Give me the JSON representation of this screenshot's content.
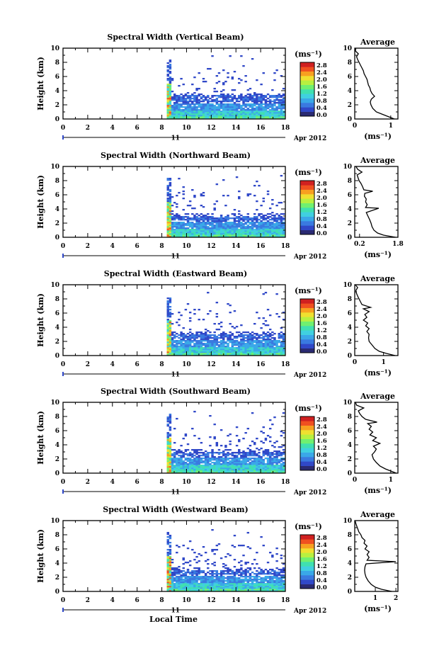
{
  "chart_data": {
    "type": "heatmap",
    "colormap": [
      "#2a2a72",
      "#3048c8",
      "#3a7ae0",
      "#3aa8e8",
      "#40d0e0",
      "#40e0b0",
      "#70f070",
      "#b8f040",
      "#f0e030",
      "#f8a020",
      "#f05020",
      "#d02020"
    ],
    "shared": {
      "ylabel": "Height (km)",
      "ylim": [
        0,
        10
      ],
      "yticks": [
        "0",
        "2",
        "4",
        "6",
        "8",
        "10"
      ],
      "xlim": [
        0,
        18
      ],
      "xticks": [
        "0",
        "2",
        "4",
        "6",
        "8",
        "10",
        "12",
        "14",
        "16",
        "18"
      ],
      "date_day": "11",
      "date_month": "Apr 2012",
      "xlabel": "Local Time",
      "colorbar_unit": "(ms⁻¹)",
      "colorbar_ticks": [
        "0.0",
        "0.4",
        "0.8",
        "1.2",
        "1.6",
        "2.0",
        "2.4",
        "2.8"
      ],
      "avg_title": "Average",
      "avg_xlabel": "(ms⁻¹)"
    },
    "panels": [
      {
        "title": "Spectral Width (Vertical Beam)",
        "data_start": 8.4,
        "data_end": 17.8,
        "upper_layer": 3.3,
        "sparse_top": 8.4,
        "avg_xlim": [
          0,
          1.2
        ],
        "avg_xticks": [
          "0",
          "1"
        ],
        "avg_xtick_values": [
          0,
          1
        ],
        "avg_profile": [
          [
            1.1,
            0
          ],
          [
            0.95,
            0.3
          ],
          [
            0.8,
            0.6
          ],
          [
            0.6,
            1
          ],
          [
            0.5,
            1.5
          ],
          [
            0.45,
            2
          ],
          [
            0.43,
            2.4
          ],
          [
            0.46,
            2.8
          ],
          [
            0.55,
            3.2
          ],
          [
            0.48,
            3.6
          ],
          [
            0.44,
            4
          ],
          [
            0.42,
            4.4
          ],
          [
            0.38,
            4.8
          ],
          [
            0.36,
            5.2
          ],
          [
            0.34,
            5.6
          ],
          [
            0.3,
            6
          ],
          [
            0.26,
            6.4
          ],
          [
            0.24,
            6.8
          ],
          [
            0.2,
            7.2
          ],
          [
            0.16,
            7.6
          ],
          [
            0.12,
            8
          ],
          [
            0.08,
            8.4
          ],
          [
            0.05,
            8.8
          ],
          [
            0.1,
            9.2
          ],
          [
            0.02,
            9.6
          ],
          [
            0.03,
            10
          ]
        ]
      },
      {
        "title": "Spectral Width (Northward Beam)",
        "data_start": 8.4,
        "data_end": 17.8,
        "upper_layer": 3.0,
        "sparse_top": 8.4,
        "avg_xlim": [
          0,
          1.8
        ],
        "avg_xticks": [
          "0.2",
          "1.8"
        ],
        "avg_xtick_values": [
          0.2,
          1.8
        ],
        "avg_profile": [
          [
            1.7,
            0
          ],
          [
            1.2,
            0.3
          ],
          [
            0.95,
            0.6
          ],
          [
            0.8,
            1
          ],
          [
            0.72,
            1.5
          ],
          [
            0.68,
            2
          ],
          [
            0.62,
            2.5
          ],
          [
            0.55,
            3
          ],
          [
            0.48,
            3.5
          ],
          [
            1.0,
            4.1
          ],
          [
            0.45,
            4.2
          ],
          [
            0.52,
            4.6
          ],
          [
            0.45,
            5
          ],
          [
            0.48,
            5.4
          ],
          [
            0.4,
            5.8
          ],
          [
            0.42,
            6.2
          ],
          [
            0.75,
            6.5
          ],
          [
            0.38,
            6.7
          ],
          [
            0.32,
            7.2
          ],
          [
            0.26,
            7.6
          ],
          [
            0.18,
            8
          ],
          [
            0.14,
            8.4
          ],
          [
            0.1,
            8.8
          ],
          [
            0.3,
            9.2
          ],
          [
            0.12,
            9.6
          ],
          [
            0.05,
            10
          ]
        ]
      },
      {
        "title": "Spectral Width (Eastward Beam)",
        "data_start": 8.4,
        "data_end": 17.8,
        "upper_layer": 3.0,
        "sparse_top": 8.2,
        "avg_xlim": [
          0,
          1.5
        ],
        "avg_xticks": [
          "0",
          "1"
        ],
        "avg_xtick_values": [
          0,
          1
        ],
        "avg_profile": [
          [
            1.4,
            0
          ],
          [
            1.1,
            0.3
          ],
          [
            0.85,
            0.6
          ],
          [
            0.7,
            1
          ],
          [
            0.6,
            1.5
          ],
          [
            0.5,
            2
          ],
          [
            0.48,
            2.5
          ],
          [
            0.5,
            3
          ],
          [
            0.42,
            3.4
          ],
          [
            0.5,
            3.8
          ],
          [
            0.38,
            4.2
          ],
          [
            0.45,
            4.6
          ],
          [
            0.3,
            5
          ],
          [
            0.42,
            5.4
          ],
          [
            0.35,
            5.8
          ],
          [
            0.5,
            6.2
          ],
          [
            0.3,
            6.6
          ],
          [
            0.55,
            6.8
          ],
          [
            0.25,
            7.2
          ],
          [
            0.2,
            7.6
          ],
          [
            0.15,
            8
          ],
          [
            0.1,
            8.4
          ],
          [
            0.06,
            8.8
          ],
          [
            0.04,
            9.2
          ],
          [
            0.1,
            9.6
          ],
          [
            0.02,
            10
          ]
        ]
      },
      {
        "title": "Spectral Width (Southward Beam)",
        "data_start": 8.4,
        "data_end": 17.8,
        "upper_layer": 3.0,
        "sparse_top": 8.3,
        "avg_xlim": [
          0,
          1.2
        ],
        "avg_xticks": [
          "0",
          "1"
        ],
        "avg_xtick_values": [
          0,
          1
        ],
        "avg_profile": [
          [
            1.15,
            0
          ],
          [
            1.0,
            0.3
          ],
          [
            0.85,
            0.6
          ],
          [
            0.7,
            1
          ],
          [
            0.6,
            1.5
          ],
          [
            0.52,
            2
          ],
          [
            0.48,
            2.6
          ],
          [
            0.55,
            3
          ],
          [
            0.6,
            3.4
          ],
          [
            0.52,
            3.8
          ],
          [
            0.7,
            4.2
          ],
          [
            0.5,
            4.6
          ],
          [
            0.6,
            5
          ],
          [
            0.42,
            5.4
          ],
          [
            0.5,
            5.8
          ],
          [
            0.4,
            6.2
          ],
          [
            0.46,
            6.6
          ],
          [
            0.36,
            7
          ],
          [
            0.62,
            7.2
          ],
          [
            0.3,
            7.6
          ],
          [
            0.2,
            8
          ],
          [
            0.14,
            8.4
          ],
          [
            0.1,
            8.8
          ],
          [
            0.25,
            9.2
          ],
          [
            0.05,
            9.6
          ],
          [
            0.02,
            10
          ]
        ]
      },
      {
        "title": "Spectral Width (Westward Beam)",
        "data_start": 8.4,
        "data_end": 17.8,
        "upper_layer": 3.0,
        "sparse_top": 8.4,
        "avg_xlim": [
          0,
          2.1
        ],
        "avg_xticks": [
          "1",
          "2"
        ],
        "avg_xtick_values": [
          1,
          2
        ],
        "avg_profile": [
          [
            1.8,
            0
          ],
          [
            1.3,
            0.3
          ],
          [
            1.0,
            0.6
          ],
          [
            0.8,
            1
          ],
          [
            0.65,
            1.5
          ],
          [
            0.55,
            2
          ],
          [
            0.5,
            2.5
          ],
          [
            0.48,
            3
          ],
          [
            0.5,
            3.5
          ],
          [
            0.55,
            3.9
          ],
          [
            2.0,
            4.2
          ],
          [
            0.6,
            4.4
          ],
          [
            0.7,
            4.8
          ],
          [
            0.6,
            5.2
          ],
          [
            0.7,
            5.6
          ],
          [
            0.5,
            6
          ],
          [
            0.6,
            6.4
          ],
          [
            0.45,
            6.8
          ],
          [
            0.5,
            7.2
          ],
          [
            0.35,
            7.6
          ],
          [
            0.3,
            8
          ],
          [
            0.2,
            8.4
          ],
          [
            0.15,
            8.8
          ],
          [
            0.1,
            9.2
          ],
          [
            0.05,
            9.6
          ],
          [
            0.02,
            10
          ]
        ]
      }
    ]
  }
}
